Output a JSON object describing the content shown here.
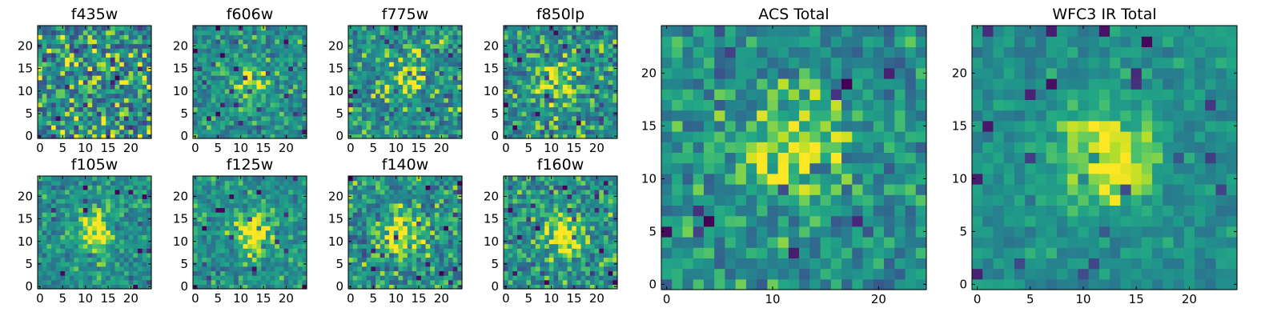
{
  "chart_data": [
    {
      "type": "heatmap",
      "title": "f435w",
      "xticks": [
        "0",
        "5",
        "10",
        "15",
        "20"
      ],
      "yticks": [
        "0",
        "5",
        "10",
        "15",
        "20"
      ],
      "grid": false,
      "colormap": "viridis",
      "pixels": [
        25,
        25
      ],
      "source_peak": [
        12,
        12
      ],
      "source_strength": 0.0,
      "noise": 0.5,
      "vmin": 0,
      "vmax": 1
    },
    {
      "type": "heatmap",
      "title": "f606w",
      "xticks": [
        "0",
        "5",
        "10",
        "15",
        "20"
      ],
      "yticks": [
        "0",
        "5",
        "10",
        "15",
        "20"
      ],
      "grid": false,
      "colormap": "viridis",
      "pixels": [
        25,
        25
      ],
      "source_peak": [
        12,
        12
      ],
      "source_strength": 0.35,
      "noise": 0.3,
      "vmin": 0,
      "vmax": 1
    },
    {
      "type": "heatmap",
      "title": "f775w",
      "xticks": [
        "0",
        "5",
        "10",
        "15",
        "20"
      ],
      "yticks": [
        "0",
        "5",
        "10",
        "15",
        "20"
      ],
      "grid": false,
      "colormap": "viridis",
      "pixels": [
        25,
        25
      ],
      "source_peak": [
        12,
        13
      ],
      "source_strength": 0.45,
      "noise": 0.38,
      "vmin": 0,
      "vmax": 1
    },
    {
      "type": "heatmap",
      "title": "f850lp",
      "xticks": [
        "0",
        "5",
        "10",
        "15",
        "20"
      ],
      "yticks": [
        "0",
        "5",
        "10",
        "15",
        "20"
      ],
      "grid": false,
      "colormap": "viridis",
      "pixels": [
        25,
        25
      ],
      "source_peak": [
        11,
        12
      ],
      "source_strength": 0.42,
      "noise": 0.38,
      "vmin": 0,
      "vmax": 1
    },
    {
      "type": "heatmap",
      "title": "f105w",
      "xticks": [
        "0",
        "5",
        "10",
        "15",
        "20"
      ],
      "yticks": [
        "0",
        "5",
        "10",
        "15",
        "20"
      ],
      "grid": false,
      "colormap": "viridis",
      "pixels": [
        25,
        25
      ],
      "source_peak": [
        12,
        12
      ],
      "source_strength": 0.55,
      "noise": 0.28,
      "vmin": 0,
      "vmax": 1
    },
    {
      "type": "heatmap",
      "title": "f125w",
      "xticks": [
        "0",
        "5",
        "10",
        "15",
        "20"
      ],
      "yticks": [
        "0",
        "5",
        "10",
        "15",
        "20"
      ],
      "grid": false,
      "colormap": "viridis",
      "pixels": [
        25,
        25
      ],
      "source_peak": [
        13,
        12
      ],
      "source_strength": 0.6,
      "noise": 0.28,
      "vmin": 0,
      "vmax": 1
    },
    {
      "type": "heatmap",
      "title": "f140w",
      "xticks": [
        "0",
        "5",
        "10",
        "15",
        "20"
      ],
      "yticks": [
        "0",
        "5",
        "10",
        "15",
        "20"
      ],
      "grid": false,
      "colormap": "viridis",
      "pixels": [
        25,
        25
      ],
      "source_peak": [
        12,
        12
      ],
      "source_strength": 0.5,
      "noise": 0.36,
      "vmin": 0,
      "vmax": 1
    },
    {
      "type": "heatmap",
      "title": "f160w",
      "xticks": [
        "0",
        "5",
        "10",
        "15",
        "20"
      ],
      "yticks": [
        "0",
        "5",
        "10",
        "15",
        "20"
      ],
      "grid": false,
      "colormap": "viridis",
      "pixels": [
        25,
        25
      ],
      "source_peak": [
        13,
        12
      ],
      "source_strength": 0.55,
      "noise": 0.34,
      "vmin": 0,
      "vmax": 1
    },
    {
      "type": "heatmap",
      "title": "ACS Total",
      "xticks": [
        "0",
        "10",
        "20"
      ],
      "yticks": [
        "0",
        "5",
        "10",
        "15",
        "20"
      ],
      "grid": false,
      "colormap": "viridis",
      "pixels": [
        25,
        25
      ],
      "source_peak": [
        12,
        13
      ],
      "source_strength": 0.5,
      "noise": 0.3,
      "vmin": 0,
      "vmax": 1
    },
    {
      "type": "heatmap",
      "title": "WFC3 IR Total",
      "xticks": [
        "0",
        "5",
        "10",
        "15",
        "20"
      ],
      "yticks": [
        "0",
        "5",
        "10",
        "15",
        "20"
      ],
      "grid": false,
      "colormap": "viridis",
      "pixels": [
        25,
        25
      ],
      "source_peak": [
        12,
        12
      ],
      "source_strength": 0.6,
      "noise": 0.18,
      "vmin": 0,
      "vmax": 1
    }
  ]
}
